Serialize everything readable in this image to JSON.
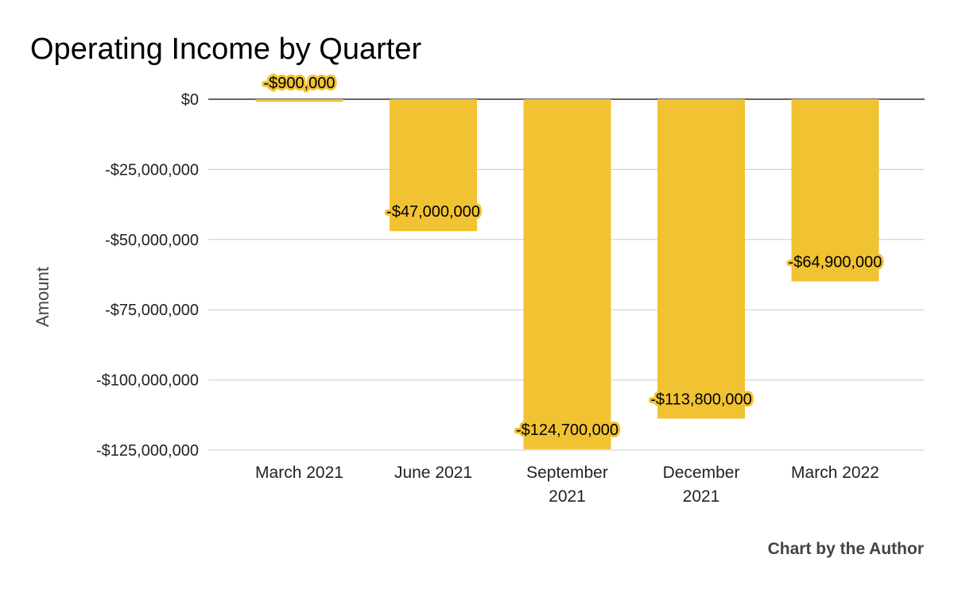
{
  "chart_data": {
    "type": "bar",
    "title": "Operating Income by Quarter",
    "ylabel": "Amount",
    "xlabel": "",
    "categories": [
      [
        "March 2021"
      ],
      [
        "June 2021"
      ],
      [
        "September",
        "2021"
      ],
      [
        "December",
        "2021"
      ],
      [
        "March 2022"
      ]
    ],
    "values": [
      -900000,
      -47000000,
      -124700000,
      -113800000,
      -64900000
    ],
    "data_labels": [
      "-$900,000",
      "-$47,000,000",
      "-$124,700,000",
      "-$113,800,000",
      "-$64,900,000"
    ],
    "yticks": [
      0,
      -25000000,
      -50000000,
      -75000000,
      -100000000,
      -125000000
    ],
    "ytick_labels": [
      "$0",
      "-$25,000,000",
      "-$50,000,000",
      "-$75,000,000",
      "-$100,000,000",
      "-$125,000,000"
    ],
    "ylim": [
      -125000000,
      0
    ],
    "grid": true,
    "legend": "none",
    "bar_color": "#F1C232",
    "credit": "Chart by the Author"
  }
}
